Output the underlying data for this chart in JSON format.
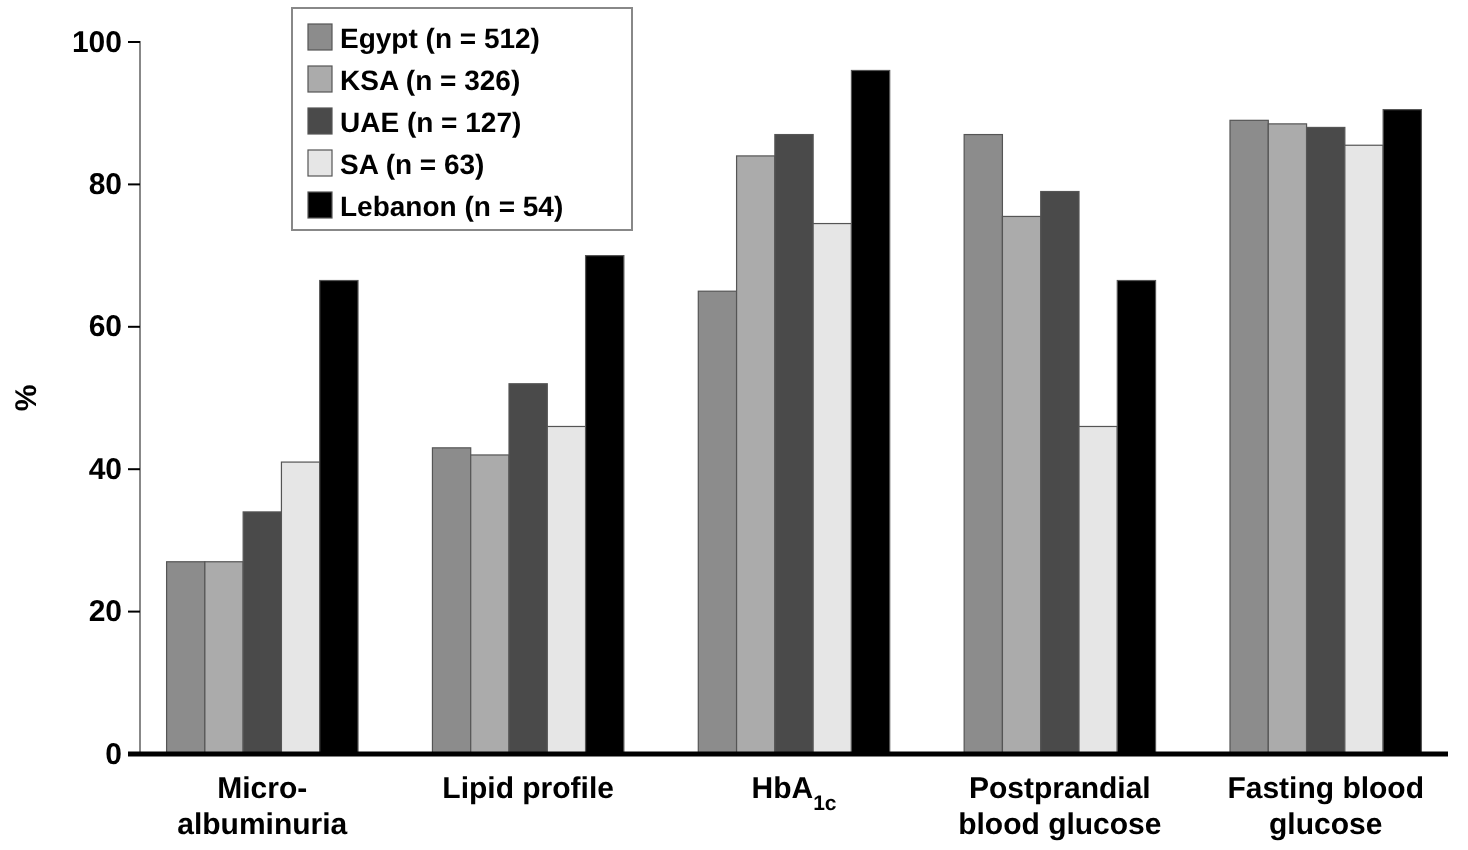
{
  "chart_data": {
    "type": "bar",
    "ylabel": "%",
    "categories": [
      "Micro-\nalbuminuria",
      "Lipid profile",
      "HbA$_{1c}$",
      "Postprandial\nblood glucose",
      "Fasting blood\nglucose"
    ],
    "series": [
      {
        "name": "Egypt (n = 512)",
        "color": "#8c8c8c",
        "values": [
          27,
          43,
          65,
          87,
          89
        ]
      },
      {
        "name": "KSA (n = 326)",
        "color": "#ababab",
        "values": [
          27,
          42,
          84,
          75.5,
          88.5
        ]
      },
      {
        "name": "UAE (n = 127)",
        "color": "#4a4a4a",
        "values": [
          34,
          52,
          87,
          79,
          88
        ]
      },
      {
        "name": "SA (n = 63)",
        "color": "#e6e6e6",
        "values": [
          41,
          46,
          74.5,
          46,
          85.5
        ]
      },
      {
        "name": "Lebanon (n = 54)",
        "color": "#000000",
        "values": [
          66.5,
          70,
          96,
          66.5,
          90.5
        ]
      }
    ],
    "ylim": [
      0,
      100
    ],
    "yticks": [
      0,
      20,
      40,
      60,
      80,
      100
    ],
    "legend": "top left"
  }
}
